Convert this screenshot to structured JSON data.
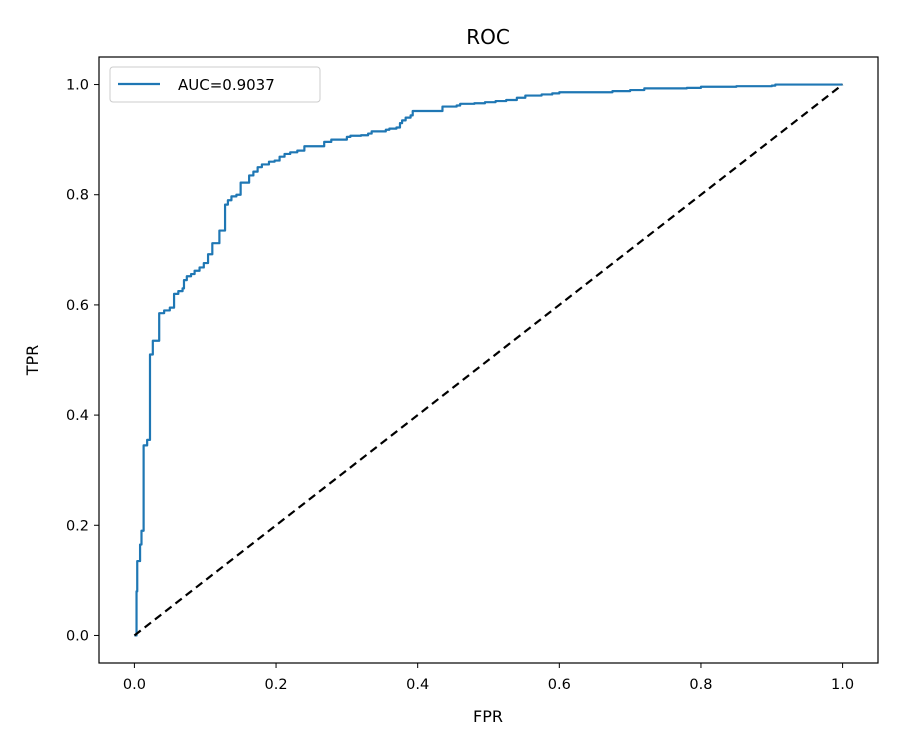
{
  "chart_data": {
    "type": "line",
    "title": "ROC",
    "xlabel": "FPR",
    "ylabel": "TPR",
    "xlim": [
      -0.05,
      1.05
    ],
    "ylim": [
      -0.05,
      1.05
    ],
    "xticks": [
      0.0,
      0.2,
      0.4,
      0.6,
      0.8,
      1.0
    ],
    "yticks": [
      0.0,
      0.2,
      0.4,
      0.6,
      0.8,
      1.0
    ],
    "xtick_labels": [
      "0.0",
      "0.2",
      "0.4",
      "0.6",
      "0.8",
      "1.0"
    ],
    "ytick_labels": [
      "0.0",
      "0.2",
      "0.4",
      "0.6",
      "0.8",
      "1.0"
    ],
    "grid": false,
    "legend_position": "top-left",
    "series": [
      {
        "name": "AUC=0.9037",
        "color": "#1f77b4",
        "style": "solid",
        "step": true,
        "points": [
          [
            0.0,
            0.0
          ],
          [
            0.003,
            0.08
          ],
          [
            0.004,
            0.135
          ],
          [
            0.008,
            0.165
          ],
          [
            0.01,
            0.19
          ],
          [
            0.013,
            0.2
          ],
          [
            0.013,
            0.345
          ],
          [
            0.018,
            0.355
          ],
          [
            0.022,
            0.36
          ],
          [
            0.022,
            0.51
          ],
          [
            0.026,
            0.51
          ],
          [
            0.026,
            0.535
          ],
          [
            0.035,
            0.535
          ],
          [
            0.035,
            0.585
          ],
          [
            0.042,
            0.59
          ],
          [
            0.05,
            0.595
          ],
          [
            0.056,
            0.6
          ],
          [
            0.056,
            0.62
          ],
          [
            0.062,
            0.625
          ],
          [
            0.068,
            0.63
          ],
          [
            0.07,
            0.645
          ],
          [
            0.074,
            0.652
          ],
          [
            0.08,
            0.656
          ],
          [
            0.085,
            0.662
          ],
          [
            0.092,
            0.668
          ],
          [
            0.098,
            0.676
          ],
          [
            0.104,
            0.68
          ],
          [
            0.104,
            0.692
          ],
          [
            0.11,
            0.7
          ],
          [
            0.11,
            0.712
          ],
          [
            0.117,
            0.712
          ],
          [
            0.12,
            0.717
          ],
          [
            0.12,
            0.735
          ],
          [
            0.128,
            0.735
          ],
          [
            0.128,
            0.782
          ],
          [
            0.132,
            0.79
          ],
          [
            0.137,
            0.797
          ],
          [
            0.144,
            0.8
          ],
          [
            0.15,
            0.8
          ],
          [
            0.15,
            0.822
          ],
          [
            0.162,
            0.822
          ],
          [
            0.162,
            0.835
          ],
          [
            0.168,
            0.842
          ],
          [
            0.174,
            0.85
          ],
          [
            0.18,
            0.855
          ],
          [
            0.19,
            0.86
          ],
          [
            0.198,
            0.862
          ],
          [
            0.205,
            0.869
          ],
          [
            0.212,
            0.874
          ],
          [
            0.22,
            0.877
          ],
          [
            0.23,
            0.88
          ],
          [
            0.24,
            0.884
          ],
          [
            0.24,
            0.888
          ],
          [
            0.268,
            0.888
          ],
          [
            0.268,
            0.896
          ],
          [
            0.278,
            0.9
          ],
          [
            0.3,
            0.9
          ],
          [
            0.3,
            0.905
          ],
          [
            0.305,
            0.907
          ],
          [
            0.32,
            0.908
          ],
          [
            0.33,
            0.911
          ],
          [
            0.335,
            0.915
          ],
          [
            0.355,
            0.918
          ],
          [
            0.36,
            0.92
          ],
          [
            0.37,
            0.922
          ],
          [
            0.375,
            0.93
          ],
          [
            0.378,
            0.935
          ],
          [
            0.383,
            0.94
          ],
          [
            0.39,
            0.944
          ],
          [
            0.393,
            0.952
          ],
          [
            0.435,
            0.952
          ],
          [
            0.435,
            0.96
          ],
          [
            0.455,
            0.962
          ],
          [
            0.46,
            0.965
          ],
          [
            0.48,
            0.966
          ],
          [
            0.495,
            0.968
          ],
          [
            0.51,
            0.97
          ],
          [
            0.525,
            0.972
          ],
          [
            0.54,
            0.976
          ],
          [
            0.552,
            0.98
          ],
          [
            0.575,
            0.982
          ],
          [
            0.59,
            0.984
          ],
          [
            0.6,
            0.986
          ],
          [
            0.67,
            0.986
          ],
          [
            0.675,
            0.988
          ],
          [
            0.7,
            0.99
          ],
          [
            0.72,
            0.993
          ],
          [
            0.78,
            0.994
          ],
          [
            0.8,
            0.996
          ],
          [
            0.85,
            0.997
          ],
          [
            0.9,
            0.998
          ],
          [
            0.905,
            1.0
          ],
          [
            1.0,
            1.0
          ]
        ]
      },
      {
        "name": "",
        "color": "#000000",
        "style": "dashed",
        "step": false,
        "points": [
          [
            0.0,
            0.0
          ],
          [
            1.0,
            1.0
          ]
        ]
      }
    ]
  }
}
